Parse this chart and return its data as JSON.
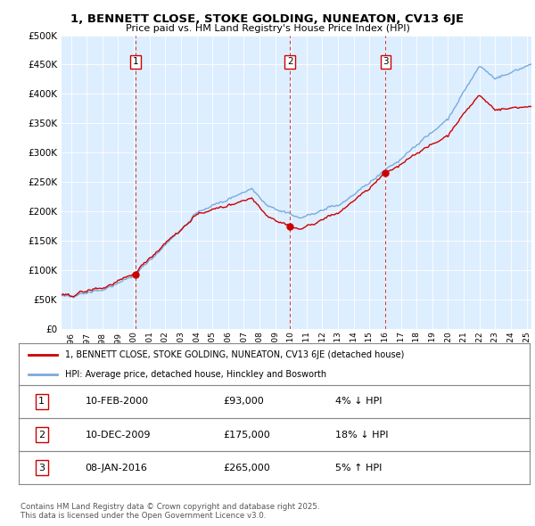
{
  "title1": "1, BENNETT CLOSE, STOKE GOLDING, NUNEATON, CV13 6JE",
  "title2": "Price paid vs. HM Land Registry's House Price Index (HPI)",
  "legend_property": "1, BENNETT CLOSE, STOKE GOLDING, NUNEATON, CV13 6JE (detached house)",
  "legend_hpi": "HPI: Average price, detached house, Hinckley and Bosworth",
  "footnote": "Contains HM Land Registry data © Crown copyright and database right 2025.\nThis data is licensed under the Open Government Licence v3.0.",
  "transactions": [
    {
      "num": 1,
      "date": "10-FEB-2000",
      "price": 93000,
      "pct": "4%",
      "direction": "↓",
      "year_x": 2000.11
    },
    {
      "num": 2,
      "date": "10-DEC-2009",
      "price": 175000,
      "pct": "18%",
      "direction": "↓",
      "year_x": 2009.94
    },
    {
      "num": 3,
      "date": "08-JAN-2016",
      "price": 265000,
      "pct": "5%",
      "direction": "↑",
      "year_x": 2016.03
    }
  ],
  "property_color": "#cc0000",
  "hpi_color": "#7aaadd",
  "background_color": "#ddeeff",
  "plot_bg": "#ddeeff",
  "ylim": [
    0,
    500000
  ],
  "xlim_start": 1995.4,
  "xlim_end": 2025.3
}
